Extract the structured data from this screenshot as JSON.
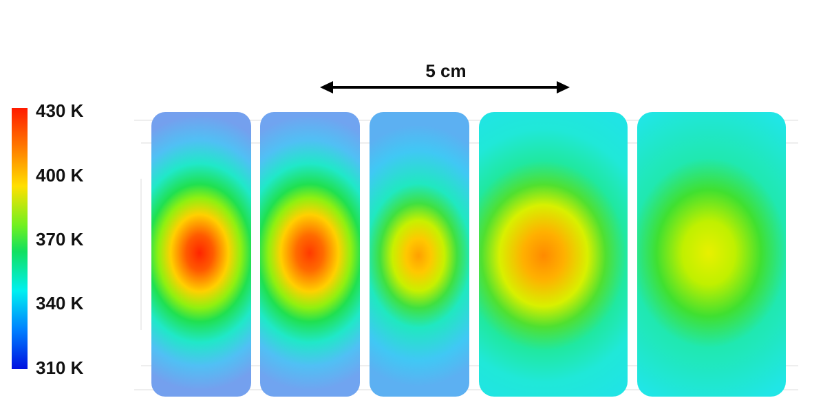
{
  "colorbar": {
    "labels": [
      "430 K",
      "400 K",
      "370 K",
      "340 K",
      "310 K"
    ]
  },
  "scale_bar": {
    "label": "5 cm"
  }
}
